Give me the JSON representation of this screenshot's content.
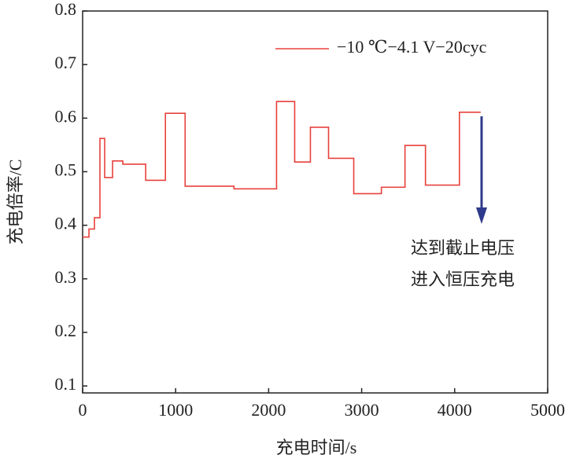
{
  "chart_data": {
    "type": "line",
    "step": "post",
    "xlabel": "充电时间/s",
    "ylabel": "充电倍率/C",
    "x": [
      0,
      68,
      127,
      186,
      237,
      322,
      432,
      678,
      890,
      1102,
      1627,
      2085,
      2280,
      2449,
      2644,
      2915,
      3212,
      3466,
      3686,
      4051,
      4280
    ],
    "series": [
      {
        "name": "−10 ℃−4.1 V−20cyc",
        "color": "#e8413c",
        "values": [
          0.378,
          0.393,
          0.414,
          0.562,
          0.489,
          0.52,
          0.514,
          0.484,
          0.609,
          0.473,
          0.468,
          0.631,
          0.518,
          0.583,
          0.525,
          0.459,
          0.471,
          0.549,
          0.475,
          0.611,
          0.611
        ]
      }
    ],
    "xlim": [
      0,
      5000
    ],
    "xticks": [
      0,
      1000,
      2000,
      3000,
      4000,
      5000
    ],
    "ylim": [
      0.087,
      0.8
    ],
    "yticks": [
      0.1,
      0.2,
      0.3,
      0.4,
      0.5,
      0.6,
      0.7,
      0.8
    ],
    "legend": "upper right",
    "annotation": [
      "达到截止电压",
      "进入恒压充电"
    ]
  }
}
